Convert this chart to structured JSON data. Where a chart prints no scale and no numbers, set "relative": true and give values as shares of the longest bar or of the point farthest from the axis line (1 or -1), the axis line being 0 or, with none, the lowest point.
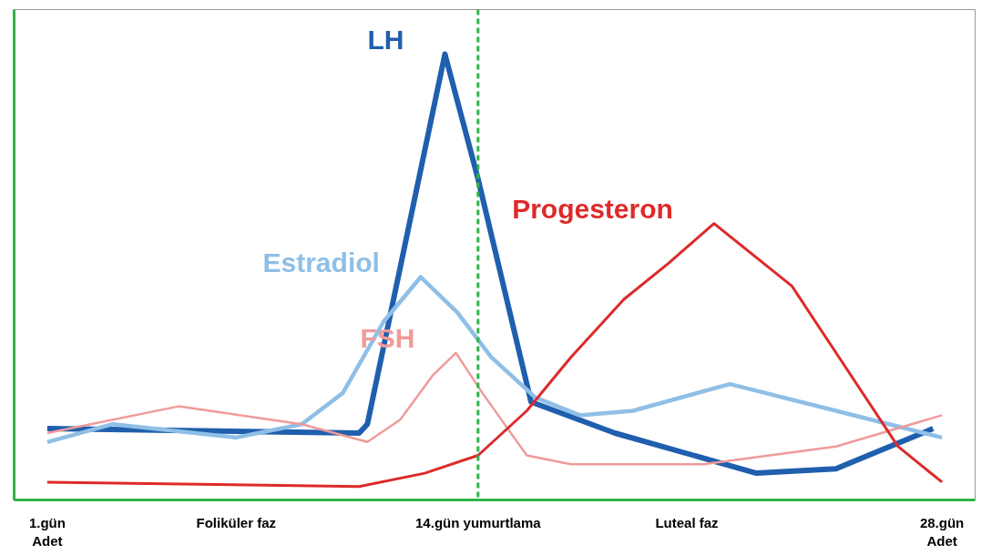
{
  "chart_data": {
    "type": "line",
    "relative": true,
    "grid": false,
    "marker": "none",
    "line_style": "solid",
    "xlim": [
      0,
      29
    ],
    "xticks": [
      {
        "value": 1,
        "label": "1.gün\nAdet"
      },
      {
        "value": 6.7,
        "label": "Foliküler faz"
      },
      {
        "value": 14,
        "label": "14.gün yumurtlama"
      },
      {
        "value": 20.3,
        "label": "Luteal faz"
      },
      {
        "value": 28,
        "label": "28.gün\nAdet"
      }
    ],
    "ref_lines": [
      {
        "axis": "x",
        "value": 14,
        "color": "#2fb34a",
        "line_style": "dashed"
      }
    ],
    "series": [
      {
        "name": "LH",
        "color": "#1f5fad",
        "x": [
          1.0,
          10.41,
          10.66,
          13.0,
          14.0,
          15.6,
          18.13,
          22.4,
          24.8,
          27.73
        ],
        "values": [
          0.16,
          0.15,
          0.17,
          1.0,
          0.72,
          0.22,
          0.15,
          0.06,
          0.07,
          0.16
        ]
      },
      {
        "name": "Estradiol",
        "color": "#8fbfe6",
        "x": [
          1.0,
          2.98,
          6.7,
          8.68,
          9.92,
          11.15,
          12.27,
          13.38,
          14.4,
          15.73,
          17.07,
          18.67,
          21.6,
          24.8,
          28.0
        ],
        "values": [
          0.13,
          0.17,
          0.14,
          0.17,
          0.24,
          0.4,
          0.5,
          0.42,
          0.32,
          0.23,
          0.19,
          0.2,
          0.26,
          0.2,
          0.14
        ]
      },
      {
        "name": "FSH",
        "color": "#f09a9a",
        "x": [
          1.0,
          4.96,
          8.68,
          10.66,
          11.65,
          12.64,
          13.33,
          14.13,
          15.47,
          16.8,
          20.8,
          24.8,
          28.0
        ],
        "values": [
          0.15,
          0.21,
          0.17,
          0.13,
          0.18,
          0.28,
          0.33,
          0.24,
          0.1,
          0.08,
          0.08,
          0.12,
          0.19
        ]
      },
      {
        "name": "Progesteron",
        "color": "#dd2a2a",
        "x": [
          1.0,
          10.41,
          12.39,
          14.0,
          15.47,
          16.8,
          18.4,
          19.73,
          21.12,
          23.47,
          25.07,
          26.67,
          28.0
        ],
        "values": [
          0.04,
          0.03,
          0.06,
          0.1,
          0.2,
          0.32,
          0.45,
          0.53,
          0.62,
          0.48,
          0.3,
          0.12,
          0.04
        ]
      }
    ]
  }
}
